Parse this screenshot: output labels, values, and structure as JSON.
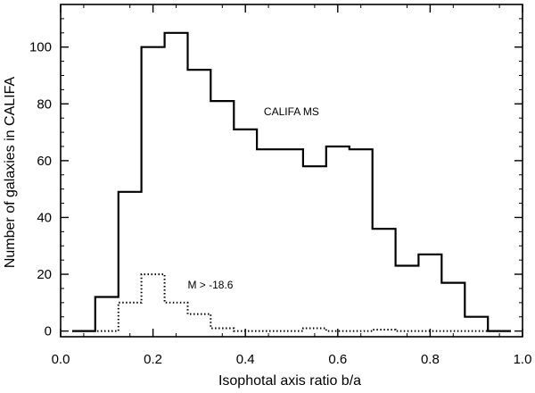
{
  "chart_data": {
    "type": "histogram",
    "xlabel": "Isophotal axis ratio b/a",
    "ylabel": "Number of galaxies in CALIFA",
    "xlim": [
      0.0,
      1.0
    ],
    "ylim": [
      -2,
      115
    ],
    "xticks": [
      0.0,
      0.2,
      0.4,
      0.6,
      0.8,
      1.0
    ],
    "xtick_labels": [
      "0.0",
      "0.2",
      "0.4",
      "0.6",
      "0.8",
      "1.0"
    ],
    "yticks": [
      0,
      20,
      40,
      60,
      80,
      100
    ],
    "ytick_labels": [
      "0",
      "20",
      "40",
      "60",
      "80",
      "100"
    ],
    "grid": false,
    "bin_edges": [
      0.025,
      0.075,
      0.125,
      0.175,
      0.225,
      0.275,
      0.325,
      0.375,
      0.425,
      0.475,
      0.525,
      0.575,
      0.625,
      0.675,
      0.725,
      0.775,
      0.825,
      0.875,
      0.925,
      0.975
    ],
    "series": [
      {
        "name": "CALIFA MS",
        "style": "solid",
        "counts": [
          0,
          12,
          49,
          100,
          105,
          92,
          81,
          71,
          64,
          64,
          58,
          65,
          64,
          36,
          23,
          27,
          17,
          5,
          0
        ]
      },
      {
        "name": "M > -18.6",
        "style": "dotted",
        "counts": [
          0,
          0,
          10,
          20,
          10,
          6,
          1,
          0,
          0,
          0,
          1,
          0,
          0,
          0.5,
          0,
          0,
          0,
          0,
          0
        ]
      }
    ],
    "annotations": [
      {
        "text": "CALIFA MS",
        "x": 0.44,
        "y": 76
      },
      {
        "text": "M > -18.6",
        "x": 0.275,
        "y": 15
      }
    ]
  }
}
